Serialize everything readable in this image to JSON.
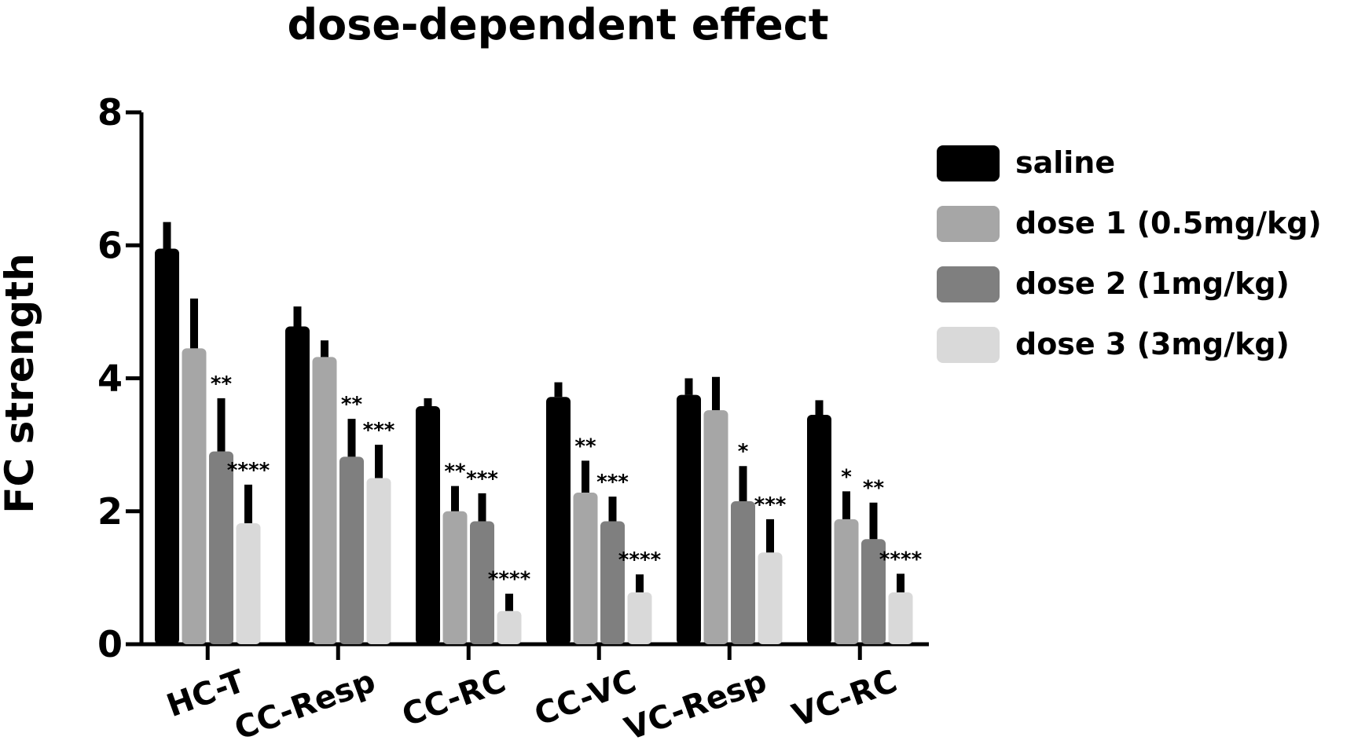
{
  "chart_data": {
    "type": "bar",
    "title": "dose-dependent effect",
    "xlabel": "",
    "ylabel": "FC strength",
    "ylim": [
      0,
      8
    ],
    "yticks": [
      "0",
      "2",
      "4",
      "6",
      "8"
    ],
    "grid": false,
    "legend_position": "right",
    "categories": [
      "HC-T",
      "CC-Resp",
      "CC-RC",
      "CC-VC",
      "VC-Resp",
      "VC-RC"
    ],
    "series": [
      {
        "name": "saline",
        "color": "#000000",
        "values": [
          5.95,
          4.78,
          3.58,
          3.72,
          3.75,
          3.45
        ],
        "errors": [
          0.4,
          0.3,
          0.12,
          0.22,
          0.25,
          0.22
        ],
        "significance": [
          "",
          "",
          "",
          "",
          "",
          ""
        ]
      },
      {
        "name": "dose 1 (0.5mg/kg)",
        "color": "#a6a6a6",
        "values": [
          4.45,
          4.32,
          2.0,
          2.28,
          3.52,
          1.88
        ],
        "errors": [
          0.75,
          0.25,
          0.38,
          0.48,
          0.5,
          0.42
        ],
        "significance": [
          "",
          "",
          "**",
          "**",
          "",
          "*"
        ]
      },
      {
        "name": "dose 2 (1mg/kg)",
        "color": "#7f7f7f",
        "values": [
          2.9,
          2.82,
          1.85,
          1.85,
          2.15,
          1.58
        ],
        "errors": [
          0.8,
          0.57,
          0.42,
          0.37,
          0.53,
          0.55
        ],
        "significance": [
          "**",
          "**",
          "***",
          "***",
          "*",
          "**"
        ]
      },
      {
        "name": "dose 3 (3mg/kg)",
        "color": "#d9d9d9",
        "values": [
          1.82,
          2.5,
          0.5,
          0.78,
          1.38,
          0.78
        ],
        "errors": [
          0.58,
          0.5,
          0.26,
          0.27,
          0.5,
          0.28
        ],
        "significance": [
          "****",
          "***",
          "****",
          "****",
          "***",
          "****"
        ]
      }
    ]
  }
}
